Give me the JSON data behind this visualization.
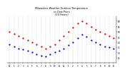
{
  "title": "Milwaukee Weather Outdoor Temperature\nvs Dew Point\n(24 Hours)",
  "temp_color": "#cc0000",
  "dew_color": "#0000cc",
  "background_color": "#ffffff",
  "grid_color": "#888888",
  "title_fontsize": 2.5,
  "hours": [
    0,
    1,
    2,
    3,
    4,
    5,
    6,
    7,
    8,
    9,
    10,
    11,
    12,
    13,
    14,
    15,
    16,
    17,
    18,
    19,
    20,
    21,
    22,
    23
  ],
  "temp": [
    50,
    48,
    46,
    44,
    42,
    40,
    38,
    36,
    34,
    36,
    38,
    42,
    46,
    50,
    54,
    58,
    60,
    58,
    55,
    52,
    50,
    48,
    46,
    44
  ],
  "dew": [
    38,
    36,
    34,
    33,
    32,
    30,
    28,
    27,
    26,
    28,
    30,
    32,
    34,
    37,
    40,
    44,
    47,
    45,
    42,
    40,
    38,
    36,
    35,
    34
  ],
  "ylim": [
    20,
    65
  ],
  "ytick_values": [
    25,
    30,
    35,
    40,
    45,
    50,
    55,
    60
  ],
  "ytick_labels": [
    "25",
    "30",
    "35",
    "40",
    "45",
    "50",
    "55",
    "60"
  ],
  "xtick_labels": [
    "12",
    "1",
    "2",
    "3",
    "4",
    "5",
    "6",
    "7",
    "8",
    "9",
    "10",
    "11",
    "12",
    "1",
    "2",
    "3",
    "4",
    "5",
    "6",
    "7",
    "8",
    "9",
    "10",
    "11"
  ],
  "ylabel_fontsize": 2.2,
  "xlabel_fontsize": 2.0,
  "marker_size": 1.2,
  "dot_size": 0.4
}
